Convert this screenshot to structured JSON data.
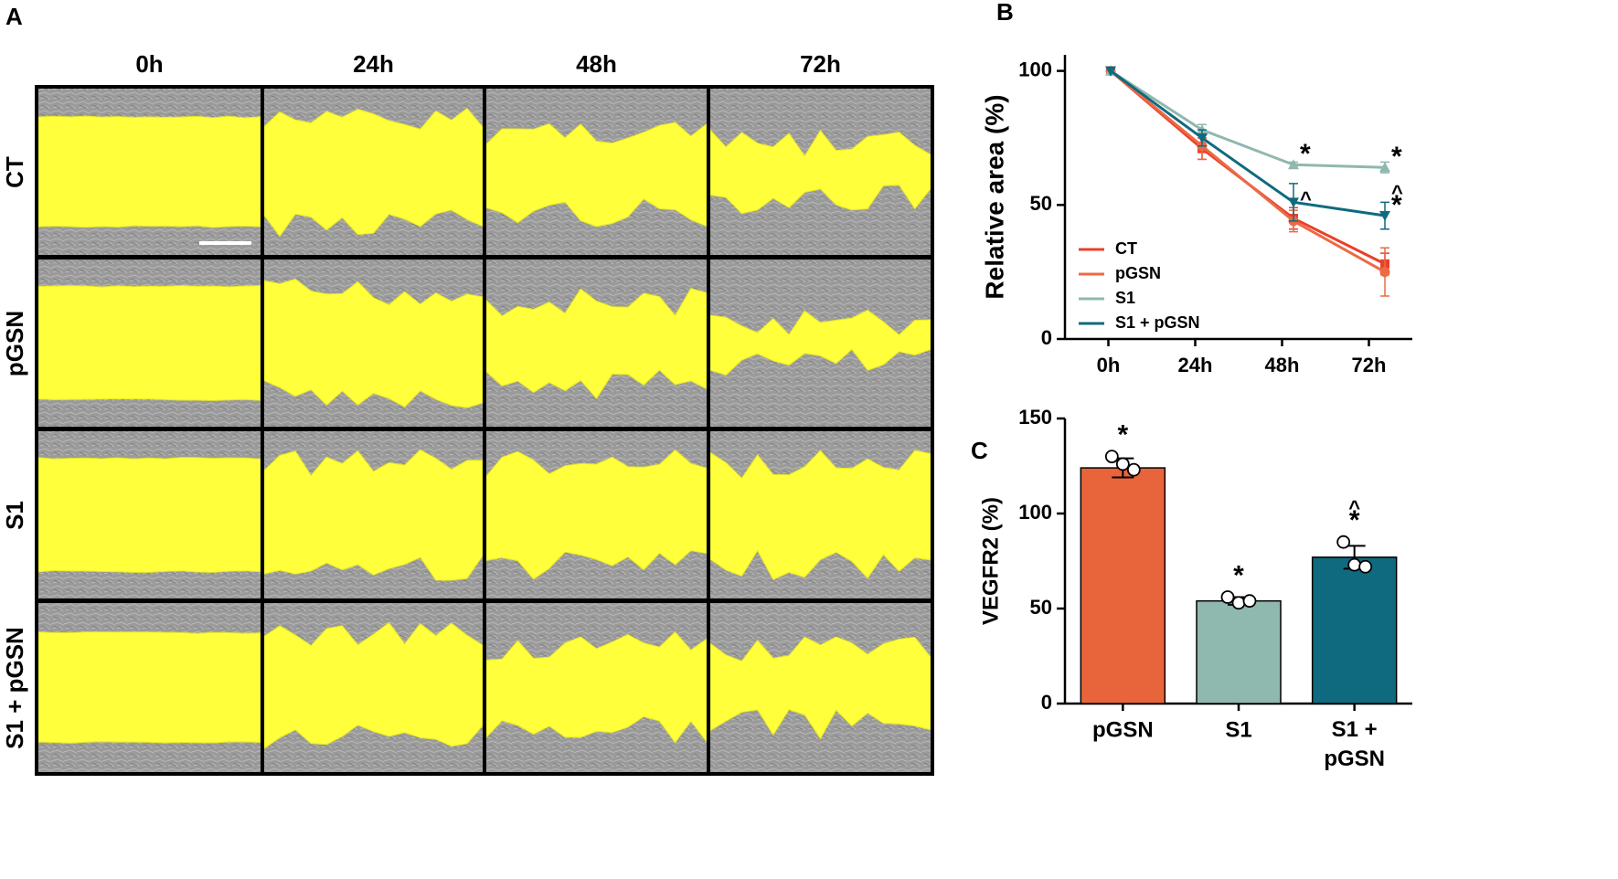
{
  "panel_a": {
    "label": "A",
    "columns": [
      "0h",
      "24h",
      "48h",
      "72h"
    ],
    "rows": [
      "CT",
      "pGSN",
      "S1",
      "S1 + pGSN"
    ]
  },
  "chart_data": [
    {
      "type": "line",
      "panel": "B",
      "y_label": "Relative area (%)",
      "categories": [
        "0h",
        "24h",
        "48h",
        "72h"
      ],
      "ylim": [
        0,
        106
      ],
      "yticks": [
        0,
        50,
        100
      ],
      "series": [
        {
          "name": "CT",
          "color": "#e8412a",
          "marker": "square",
          "values": [
            100,
            71,
            45,
            28
          ],
          "errors": [
            0,
            4,
            4,
            4
          ]
        },
        {
          "name": "pGSN",
          "color": "#ec6a45",
          "marker": "circle",
          "values": [
            100,
            72,
            44,
            25
          ],
          "errors": [
            0,
            5,
            4,
            9
          ]
        },
        {
          "name": "S1",
          "color": "#8fb8ae",
          "marker": "triangle",
          "values": [
            100,
            78,
            65,
            64
          ],
          "errors": [
            0,
            2,
            1,
            2
          ]
        },
        {
          "name": "S1 + pGSN",
          "color": "#0f6a7f",
          "marker": "triangle-down",
          "values": [
            100,
            75,
            51,
            46
          ],
          "errors": [
            0,
            3,
            7,
            5
          ]
        }
      ],
      "annotations": [
        {
          "text": "*",
          "series": "S1",
          "category": "48h"
        },
        {
          "text": "^",
          "series": "S1 + pGSN",
          "category": "48h"
        },
        {
          "text": "*",
          "series": "S1",
          "category": "72h"
        },
        {
          "text": "*",
          "series": "S1 + pGSN",
          "category": "72h"
        },
        {
          "text": "^",
          "series": "S1 + pGSN",
          "category": "72h"
        }
      ]
    },
    {
      "type": "bar",
      "panel": "C",
      "y_label": "VEGFR2 (%)",
      "categories": [
        "pGSN",
        "S1",
        "S1 + pGSN"
      ],
      "values": [
        124,
        54,
        77
      ],
      "errors": [
        5,
        2,
        6
      ],
      "colors": [
        "#e8643a",
        "#8fb8ae",
        "#0f6a7f"
      ],
      "points": [
        [
          130,
          126,
          123
        ],
        [
          56,
          53,
          54
        ],
        [
          85,
          73,
          72
        ]
      ],
      "ylim": [
        0,
        150
      ],
      "yticks": [
        0,
        50,
        100,
        150
      ],
      "annotations": [
        {
          "text": "*",
          "category": "pGSN"
        },
        {
          "text": "*",
          "category": "S1"
        },
        {
          "text": "*",
          "category": "S1 + pGSN"
        },
        {
          "text": "^",
          "category": "S1 + pGSN"
        }
      ]
    }
  ]
}
